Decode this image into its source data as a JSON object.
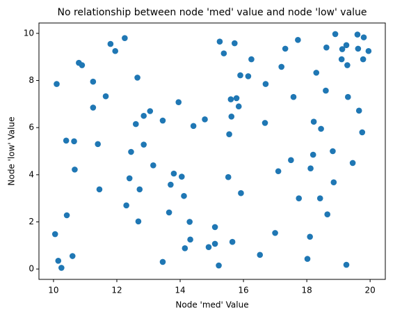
{
  "chart_data": {
    "type": "scatter",
    "title": "No relationship between node 'med' value and node 'low' value",
    "x_label": "Node 'med' Value",
    "y_label": "Node 'low' Value",
    "color": "#1f77b4",
    "x": [
      10.05,
      10.1,
      10.15,
      10.25,
      10.4,
      10.42,
      10.6,
      10.65,
      10.67,
      10.8,
      10.9,
      11.25,
      11.25,
      11.4,
      11.45,
      11.65,
      11.8,
      11.95,
      12.25,
      12.3,
      12.4,
      12.45,
      12.6,
      12.65,
      12.68,
      12.72,
      12.85,
      12.85,
      13.05,
      13.15,
      13.45,
      13.45,
      13.65,
      13.7,
      13.8,
      13.95,
      14.05,
      14.12,
      14.15,
      14.3,
      14.32,
      14.42,
      14.78,
      14.9,
      15.1,
      15.1,
      15.22,
      15.25,
      15.38,
      15.52,
      15.55,
      15.6,
      15.62,
      15.65,
      15.72,
      15.78,
      15.85,
      15.9,
      15.92,
      16.15,
      16.25,
      16.52,
      16.68,
      16.7,
      17.0,
      17.1,
      17.2,
      17.32,
      17.5,
      17.58,
      17.72,
      17.75,
      18.02,
      18.1,
      18.12,
      18.2,
      18.22,
      18.3,
      18.42,
      18.45,
      18.6,
      18.62,
      18.65,
      18.82,
      18.85,
      18.9,
      19.1,
      19.12,
      19.25,
      19.25,
      19.28,
      19.3,
      19.45,
      19.6,
      19.62,
      19.65,
      19.75,
      19.78,
      19.8,
      19.95
    ],
    "y": [
      1.48,
      7.85,
      0.35,
      0.05,
      5.45,
      2.28,
      0.55,
      5.42,
      4.22,
      8.75,
      8.65,
      7.95,
      6.85,
      5.3,
      3.38,
      7.33,
      9.55,
      9.25,
      9.8,
      2.7,
      3.85,
      4.97,
      6.15,
      8.12,
      2.02,
      3.38,
      6.5,
      5.28,
      6.7,
      4.4,
      6.3,
      0.3,
      2.4,
      3.58,
      4.05,
      7.08,
      3.92,
      3.1,
      0.88,
      2.0,
      1.25,
      6.07,
      6.35,
      0.93,
      1.07,
      1.78,
      0.15,
      9.65,
      9.15,
      3.9,
      5.72,
      7.2,
      6.47,
      1.15,
      9.58,
      7.25,
      6.9,
      8.22,
      3.22,
      8.18,
      8.9,
      0.6,
      6.2,
      7.85,
      1.53,
      4.15,
      8.58,
      9.35,
      4.62,
      7.3,
      9.72,
      3.0,
      0.43,
      1.37,
      4.27,
      4.85,
      6.25,
      8.33,
      3.0,
      5.95,
      7.57,
      9.4,
      2.32,
      5.0,
      3.68,
      9.97,
      8.9,
      9.33,
      0.18,
      9.5,
      8.65,
      7.3,
      4.5,
      9.95,
      9.35,
      6.72,
      5.8,
      8.9,
      9.83,
      9.25
    ],
    "xlim": [
      9.54,
      20.48
    ],
    "ylim": [
      -0.44,
      10.44
    ],
    "xticks": [
      10,
      12,
      14,
      16,
      18,
      20
    ],
    "yticks": [
      0,
      2,
      4,
      6,
      8,
      10
    ]
  }
}
